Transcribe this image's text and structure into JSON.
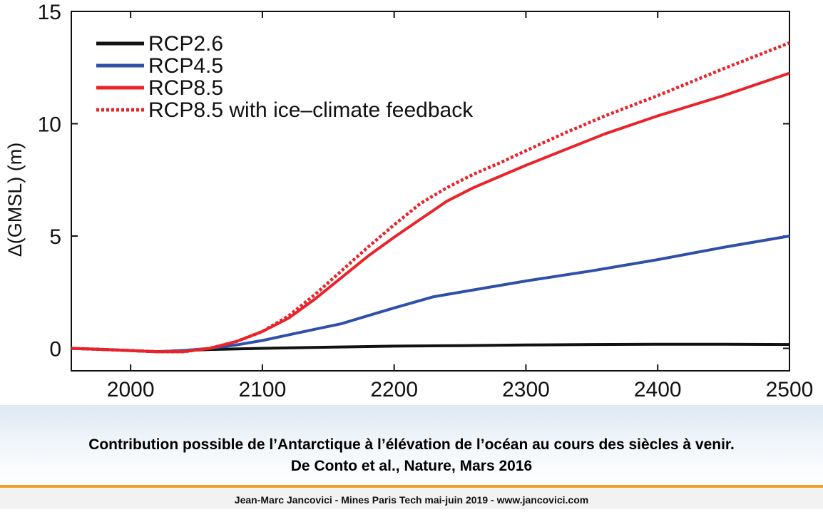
{
  "chart_data": {
    "type": "line",
    "title": "",
    "xlabel": "",
    "ylabel": "Δ(GMSL) (m)",
    "xlim": [
      1955,
      2500
    ],
    "ylim": [
      -1,
      15
    ],
    "x_ticks": [
      2000,
      2100,
      2200,
      2300,
      2400,
      2500
    ],
    "y_ticks": [
      0,
      5,
      10,
      15
    ],
    "grid": false,
    "legend_position": "top-left",
    "series": [
      {
        "name": "RCP2.6",
        "color": "#111111",
        "style": "solid",
        "points": [
          [
            1955,
            0
          ],
          [
            1980,
            -0.05
          ],
          [
            2000,
            -0.1
          ],
          [
            2020,
            -0.15
          ],
          [
            2040,
            -0.1
          ],
          [
            2060,
            -0.05
          ],
          [
            2100,
            0
          ],
          [
            2150,
            0.05
          ],
          [
            2200,
            0.1
          ],
          [
            2250,
            0.12
          ],
          [
            2300,
            0.15
          ],
          [
            2350,
            0.17
          ],
          [
            2400,
            0.18
          ],
          [
            2450,
            0.18
          ],
          [
            2500,
            0.17
          ]
        ]
      },
      {
        "name": "RCP4.5",
        "color": "#2f4fa8",
        "style": "solid",
        "points": [
          [
            1955,
            0
          ],
          [
            1980,
            -0.05
          ],
          [
            2000,
            -0.1
          ],
          [
            2020,
            -0.15
          ],
          [
            2040,
            -0.1
          ],
          [
            2060,
            0
          ],
          [
            2080,
            0.15
          ],
          [
            2100,
            0.35
          ],
          [
            2120,
            0.6
          ],
          [
            2140,
            0.85
          ],
          [
            2160,
            1.1
          ],
          [
            2180,
            1.45
          ],
          [
            2200,
            1.8
          ],
          [
            2230,
            2.3
          ],
          [
            2260,
            2.6
          ],
          [
            2300,
            3.0
          ],
          [
            2350,
            3.45
          ],
          [
            2400,
            3.95
          ],
          [
            2450,
            4.5
          ],
          [
            2500,
            5.0
          ]
        ]
      },
      {
        "name": "RCP8.5",
        "color": "#e8242a",
        "style": "solid",
        "points": [
          [
            1955,
            0
          ],
          [
            1980,
            -0.05
          ],
          [
            2000,
            -0.1
          ],
          [
            2020,
            -0.15
          ],
          [
            2040,
            -0.15
          ],
          [
            2060,
            0
          ],
          [
            2080,
            0.3
          ],
          [
            2100,
            0.75
          ],
          [
            2120,
            1.35
          ],
          [
            2140,
            2.2
          ],
          [
            2160,
            3.15
          ],
          [
            2180,
            4.1
          ],
          [
            2200,
            4.95
          ],
          [
            2220,
            5.75
          ],
          [
            2240,
            6.55
          ],
          [
            2260,
            7.15
          ],
          [
            2280,
            7.65
          ],
          [
            2300,
            8.15
          ],
          [
            2330,
            8.85
          ],
          [
            2360,
            9.55
          ],
          [
            2400,
            10.35
          ],
          [
            2450,
            11.25
          ],
          [
            2500,
            12.25
          ]
        ]
      },
      {
        "name": "RCP8.5 with ice–climate feedback",
        "color": "#e8242a",
        "style": "dotted",
        "points": [
          [
            1955,
            0
          ],
          [
            1980,
            -0.05
          ],
          [
            2000,
            -0.1
          ],
          [
            2020,
            -0.15
          ],
          [
            2040,
            -0.15
          ],
          [
            2060,
            0
          ],
          [
            2080,
            0.3
          ],
          [
            2100,
            0.75
          ],
          [
            2120,
            1.45
          ],
          [
            2140,
            2.4
          ],
          [
            2160,
            3.45
          ],
          [
            2180,
            4.5
          ],
          [
            2200,
            5.5
          ],
          [
            2220,
            6.45
          ],
          [
            2240,
            7.15
          ],
          [
            2260,
            7.75
          ],
          [
            2280,
            8.25
          ],
          [
            2300,
            8.8
          ],
          [
            2330,
            9.6
          ],
          [
            2360,
            10.35
          ],
          [
            2400,
            11.25
          ],
          [
            2450,
            12.45
          ],
          [
            2500,
            13.6
          ]
        ]
      }
    ]
  },
  "caption": {
    "line1": "Contribution possible de l’Antarctique à l’élévation de l’océan au cours des siècles à venir.",
    "line2": "De Conto et al., Nature, Mars 2016"
  },
  "footer": {
    "text": "Jean-Marc Jancovici - Mines Paris Tech mai-juin 2019 - www.jancovici.com"
  },
  "colors": {
    "caption_band": "#dde8f2",
    "rule": "#f0a020",
    "footer_bg": "#f2f2f2"
  }
}
